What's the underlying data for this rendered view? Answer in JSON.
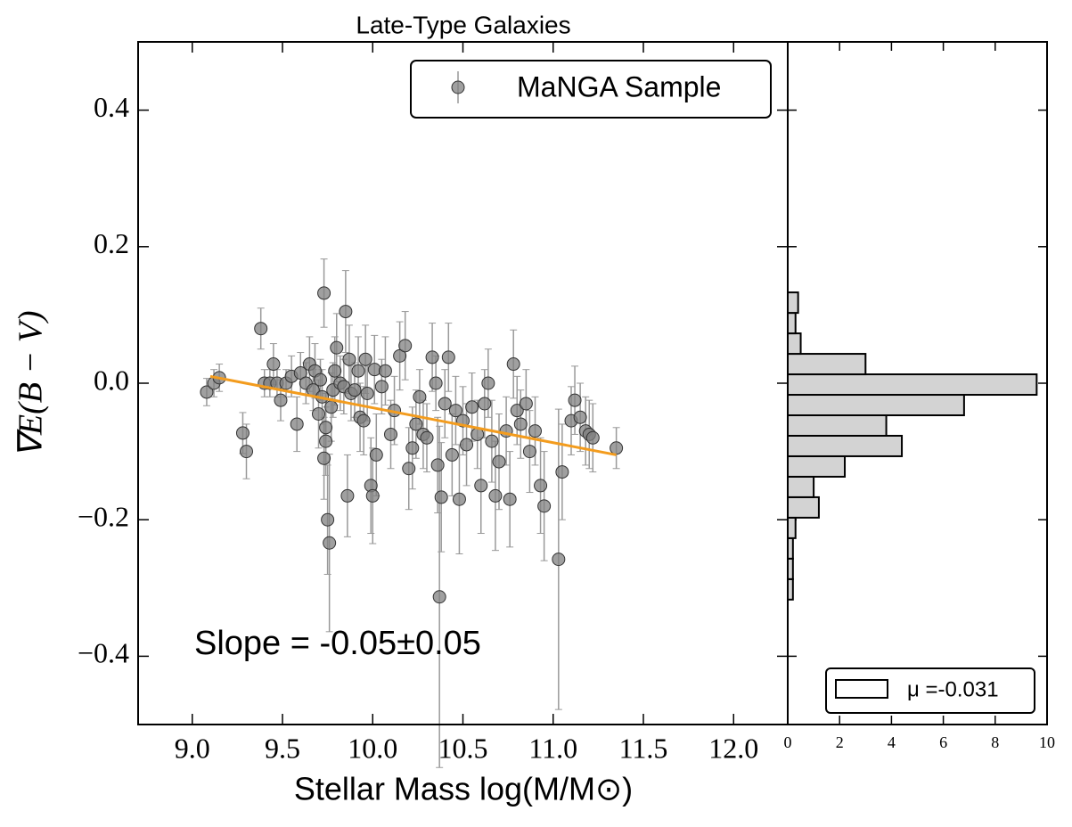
{
  "chart_data": [
    {
      "type": "scatter",
      "title": "Late-Type Galaxies",
      "xlabel": "Stellar Mass log(M/M⊙)",
      "ylabel": "∇E(B − V)",
      "annotation": "Slope = -0.05±0.05",
      "annotation_color": "#e8141c",
      "legend": "upper right",
      "xlim": [
        8.7,
        12.3
      ],
      "ylim": [
        -0.5,
        0.5
      ],
      "xticks": [
        {
          "value": 9,
          "label": "9.0"
        },
        9.5,
        {
          "value": 10,
          "label": "10.0"
        },
        10.5,
        {
          "value": 11,
          "label": "11.0"
        },
        11.5,
        {
          "value": 12,
          "label": "12.0"
        }
      ],
      "yticks": [
        {
          "value": -0.4,
          "label": "−0.4"
        },
        {
          "value": -0.2,
          "label": "−0.2"
        },
        {
          "value": 0,
          "label": "0.0"
        },
        0.2,
        0.4
      ],
      "fit_line": {
        "x": [
          9.1,
          11.35
        ],
        "y": [
          0.01,
          -0.105
        ],
        "color": "#f39c1e"
      },
      "series": [
        {
          "name": "MaNGA Sample",
          "color": "#808080",
          "x": [
            9.08,
            9.12,
            9.15,
            9.28,
            9.3,
            9.38,
            9.4,
            9.43,
            9.45,
            9.47,
            9.49,
            9.52,
            9.55,
            9.58,
            9.6,
            9.63,
            9.65,
            9.67,
            9.68,
            9.7,
            9.71,
            9.72,
            9.73,
            9.73,
            9.74,
            9.74,
            9.75,
            9.76,
            9.77,
            9.78,
            9.79,
            9.8,
            9.82,
            9.84,
            9.85,
            9.86,
            9.87,
            9.88,
            9.9,
            9.92,
            9.93,
            9.95,
            9.96,
            9.97,
            9.99,
            10.0,
            10.01,
            10.02,
            10.05,
            10.07,
            10.1,
            10.12,
            10.15,
            10.18,
            10.2,
            10.22,
            10.24,
            10.26,
            10.28,
            10.3,
            10.33,
            10.35,
            10.36,
            10.37,
            10.38,
            10.4,
            10.42,
            10.44,
            10.46,
            10.48,
            10.5,
            10.52,
            10.55,
            10.58,
            10.6,
            10.62,
            10.64,
            10.66,
            10.68,
            10.7,
            10.74,
            10.76,
            10.78,
            10.8,
            10.82,
            10.85,
            10.87,
            10.9,
            10.93,
            10.95,
            11.03,
            11.05,
            11.1,
            11.12,
            11.15,
            11.18,
            11.2,
            11.22,
            11.35
          ],
          "values": [
            -0.013,
            0.0,
            0.008,
            -0.073,
            -0.1,
            0.08,
            0.0,
            0.0,
            0.028,
            0.0,
            -0.025,
            0.0,
            0.01,
            -0.06,
            0.015,
            0.0,
            0.028,
            -0.01,
            0.018,
            -0.045,
            0.005,
            -0.02,
            0.132,
            -0.11,
            -0.085,
            -0.065,
            -0.2,
            -0.234,
            -0.035,
            -0.01,
            0.018,
            0.052,
            0.0,
            -0.005,
            0.105,
            -0.165,
            0.035,
            -0.015,
            -0.01,
            0.018,
            -0.05,
            -0.055,
            0.035,
            -0.015,
            -0.15,
            -0.165,
            0.02,
            -0.105,
            -0.005,
            0.018,
            -0.075,
            -0.04,
            0.04,
            0.055,
            -0.125,
            -0.095,
            -0.06,
            -0.02,
            -0.075,
            -0.08,
            0.038,
            0.0,
            -0.12,
            -0.313,
            -0.167,
            -0.03,
            0.038,
            -0.105,
            -0.04,
            -0.17,
            -0.055,
            -0.09,
            -0.035,
            -0.075,
            -0.15,
            -0.03,
            0.0,
            -0.085,
            -0.165,
            -0.115,
            -0.07,
            -0.17,
            0.028,
            -0.04,
            -0.06,
            -0.03,
            -0.1,
            -0.07,
            -0.15,
            -0.18,
            -0.258,
            -0.13,
            -0.055,
            -0.025,
            -0.05,
            -0.07,
            -0.075,
            -0.08,
            -0.095
          ],
          "errors": [
            0.02,
            0.02,
            0.02,
            0.03,
            0.04,
            0.03,
            0.02,
            0.02,
            0.03,
            0.02,
            0.03,
            0.02,
            0.03,
            0.04,
            0.03,
            0.03,
            0.04,
            0.03,
            0.04,
            0.05,
            0.03,
            0.04,
            0.05,
            0.06,
            0.05,
            0.05,
            0.08,
            0.13,
            0.05,
            0.04,
            0.05,
            0.05,
            0.04,
            0.04,
            0.06,
            0.06,
            0.05,
            0.04,
            0.04,
            0.05,
            0.05,
            0.05,
            0.05,
            0.04,
            0.07,
            0.07,
            0.05,
            0.06,
            0.04,
            0.05,
            0.05,
            0.05,
            0.05,
            0.05,
            0.06,
            0.06,
            0.05,
            0.04,
            0.05,
            0.05,
            0.05,
            0.04,
            0.07,
            0.25,
            0.08,
            0.05,
            0.05,
            0.06,
            0.05,
            0.08,
            0.05,
            0.06,
            0.05,
            0.05,
            0.07,
            0.05,
            0.05,
            0.06,
            0.08,
            0.07,
            0.05,
            0.07,
            0.05,
            0.05,
            0.05,
            0.05,
            0.06,
            0.05,
            0.07,
            0.08,
            0.22,
            0.07,
            0.05,
            0.05,
            0.05,
            0.05,
            0.05,
            0.05,
            0.03
          ]
        }
      ]
    },
    {
      "type": "histogram",
      "orientation": "horizontal",
      "legend": "lower right",
      "xlim": [
        0,
        10
      ],
      "xticks": [
        0,
        2,
        4,
        6,
        8,
        10
      ],
      "ylim": [
        -0.5,
        0.5
      ],
      "bins": [
        -0.317,
        -0.287,
        -0.257,
        -0.227,
        -0.197,
        -0.167,
        -0.137,
        -0.107,
        -0.077,
        -0.047,
        -0.017,
        0.013,
        0.043,
        0.073,
        0.103,
        0.133
      ],
      "series": [
        {
          "name": "μ =-0.031",
          "color": "#d3d3d3",
          "values": [
            0.2,
            0.2,
            0.2,
            0.3,
            1.2,
            1.0,
            2.2,
            4.4,
            3.8,
            6.8,
            9.6,
            3.0,
            0.5,
            0.3,
            0.4
          ]
        }
      ]
    }
  ]
}
